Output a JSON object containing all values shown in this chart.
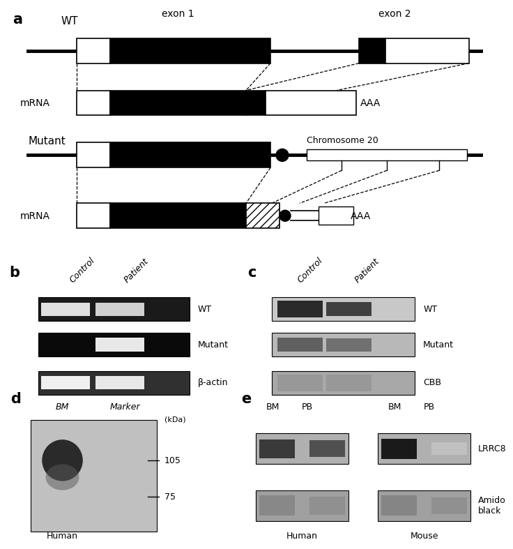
{
  "fig_width": 7.0,
  "fig_height": 7.91,
  "bg_color": "#ffffff",
  "panel_a": {
    "label": "a",
    "wt_label": "WT",
    "mutant_label": "Mutant",
    "mrna_label": "mRNA",
    "exon1_label": "exon 1",
    "exon2_label": "exon 2",
    "chrom_label": "Chromosome 20",
    "aaa_label": "AAA"
  },
  "panel_b": {
    "label": "b",
    "lanes": [
      "Control",
      "Patient"
    ],
    "bands": [
      "WT",
      "Mutant",
      "β-actin"
    ]
  },
  "panel_c": {
    "label": "c",
    "lanes": [
      "Control",
      "Patient"
    ],
    "bands": [
      "WT",
      "Mutant",
      "CBB"
    ]
  },
  "panel_d": {
    "label": "d",
    "lanes": [
      "BM",
      "Marker"
    ],
    "markers": [
      105,
      75
    ],
    "unit": "(kDa)",
    "sublabel": "Human"
  },
  "panel_e": {
    "label": "e",
    "col_labels": [
      "BM",
      "PB",
      "BM",
      "PB"
    ],
    "row_labels": [
      "LRRC8",
      "Amido\nblack"
    ],
    "group_labels": [
      "Human",
      "Mouse"
    ]
  }
}
